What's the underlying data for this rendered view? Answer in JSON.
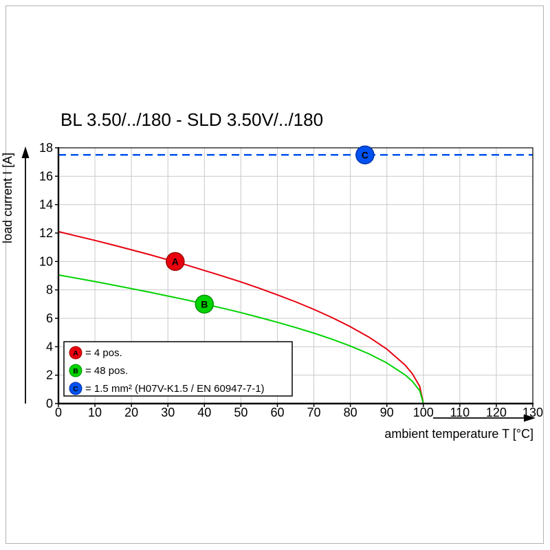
{
  "chart_data": {
    "type": "line",
    "title": "BL 3.50/../180 - SLD 3.50V/../180",
    "xlabel": "ambient temperature T [°C]",
    "ylabel": "load current I [A]",
    "xlim": [
      0,
      130
    ],
    "ylim": [
      0,
      18
    ],
    "xticks": [
      0,
      10,
      20,
      30,
      40,
      50,
      60,
      70,
      80,
      90,
      100,
      110,
      120,
      130
    ],
    "yticks": [
      0,
      2,
      4,
      6,
      8,
      10,
      12,
      14,
      16,
      18
    ],
    "grid": true,
    "legend_position": "inside bottom-left",
    "colors": {
      "grid": "#c9c9c9",
      "axis": "#000000",
      "background": "#ffffff",
      "page_border": "#b3b3b3"
    },
    "series": [
      {
        "name": "A",
        "label": "= 4 pos.",
        "color": "#e8000f",
        "edge": "#9e0000",
        "width": 2,
        "dash": null,
        "marker": {
          "x": 32,
          "y": 10
        },
        "points": [
          [
            0,
            12.1
          ],
          [
            5,
            11.79
          ],
          [
            10,
            11.48
          ],
          [
            15,
            11.16
          ],
          [
            20,
            10.82
          ],
          [
            25,
            10.48
          ],
          [
            30,
            10.12
          ],
          [
            35,
            9.76
          ],
          [
            40,
            9.37
          ],
          [
            45,
            8.97
          ],
          [
            50,
            8.56
          ],
          [
            55,
            8.12
          ],
          [
            60,
            7.65
          ],
          [
            65,
            7.16
          ],
          [
            70,
            6.63
          ],
          [
            75,
            6.05
          ],
          [
            80,
            5.41
          ],
          [
            85,
            4.69
          ],
          [
            90,
            3.83
          ],
          [
            95,
            2.71
          ],
          [
            97,
            2.1
          ],
          [
            99,
            1.21
          ],
          [
            100,
            0
          ]
        ]
      },
      {
        "name": "B",
        "label": "= 48 pos.",
        "color": "#00d300",
        "edge": "#008f00",
        "width": 2,
        "dash": null,
        "marker": {
          "x": 40,
          "y": 7
        },
        "points": [
          [
            0,
            9.05
          ],
          [
            5,
            8.82
          ],
          [
            10,
            8.59
          ],
          [
            15,
            8.34
          ],
          [
            20,
            8.09
          ],
          [
            25,
            7.84
          ],
          [
            30,
            7.57
          ],
          [
            35,
            7.3
          ],
          [
            40,
            7.01
          ],
          [
            45,
            6.71
          ],
          [
            50,
            6.4
          ],
          [
            55,
            6.07
          ],
          [
            60,
            5.72
          ],
          [
            65,
            5.35
          ],
          [
            70,
            4.96
          ],
          [
            75,
            4.53
          ],
          [
            80,
            4.05
          ],
          [
            85,
            3.51
          ],
          [
            90,
            2.86
          ],
          [
            95,
            2.02
          ],
          [
            97,
            1.57
          ],
          [
            99,
            0.91
          ],
          [
            100,
            0
          ]
        ]
      },
      {
        "name": "C",
        "label": "= 1.5 mm² (H07V-K1.5 / EN 60947-7-1)",
        "color": "#0051f0",
        "edge": "#0031a8",
        "width": 2.5,
        "dash": "11 7",
        "marker": {
          "x": 84,
          "y": 17.5
        },
        "points": [
          [
            0,
            17.5
          ],
          [
            130,
            17.5
          ]
        ]
      }
    ]
  }
}
